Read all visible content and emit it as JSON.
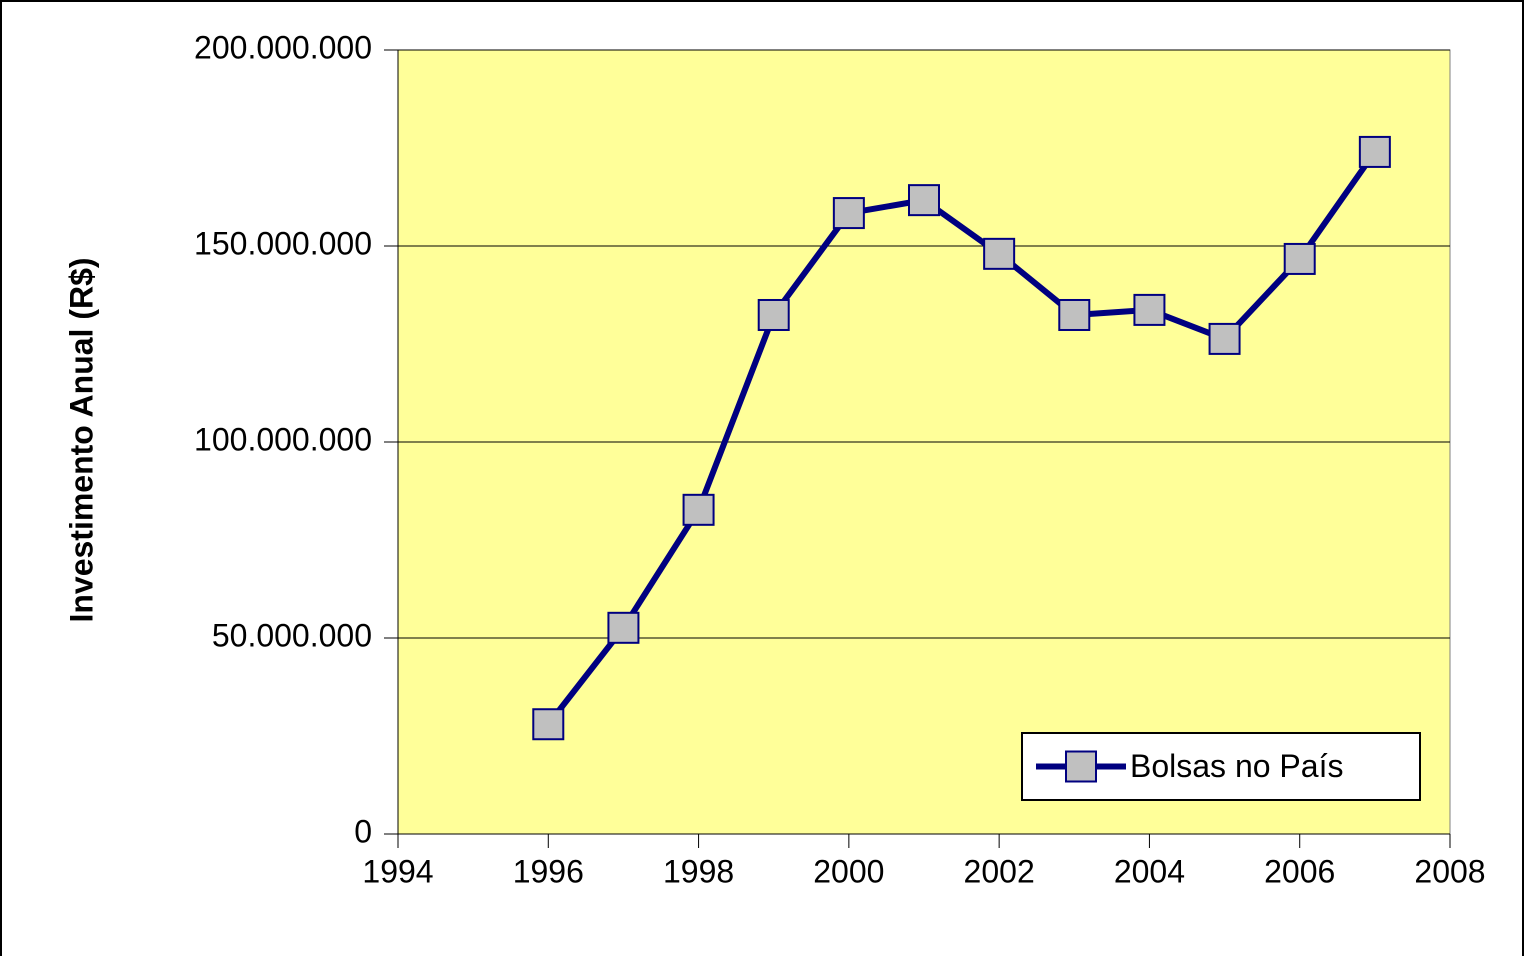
{
  "chart_data": {
    "type": "line",
    "y_label": "Investimento Anual (R$)",
    "x": [
      1996,
      1997,
      1998,
      1999,
      2000,
      2001,
      2002,
      2003,
      2004,
      2005,
      2006,
      2007
    ],
    "series": [
      {
        "name": "Bolsas no País",
        "color": "#000080",
        "marker_color": "#C0C0C0",
        "values": [
          28000000,
          52600000,
          82700000,
          132400000,
          158400000,
          161700000,
          148000000,
          132400000,
          133700000,
          126300000,
          146700000,
          174000000
        ]
      }
    ],
    "xlim": [
      1994,
      2008
    ],
    "xticks": [
      1994,
      1996,
      1998,
      2000,
      2002,
      2004,
      2006,
      2008
    ],
    "ylim": [
      0,
      200000000
    ],
    "yticks": [
      0,
      {
        "value": 50000000,
        "label": "50.000.000"
      },
      {
        "value": 100000000,
        "label": "100.000.000"
      },
      {
        "value": 150000000,
        "label": "150.000.000"
      },
      {
        "value": 200000000,
        "label": "200.000.000"
      }
    ],
    "grid": true,
    "plot_background": "#FFFF99",
    "legend": "lower right"
  }
}
